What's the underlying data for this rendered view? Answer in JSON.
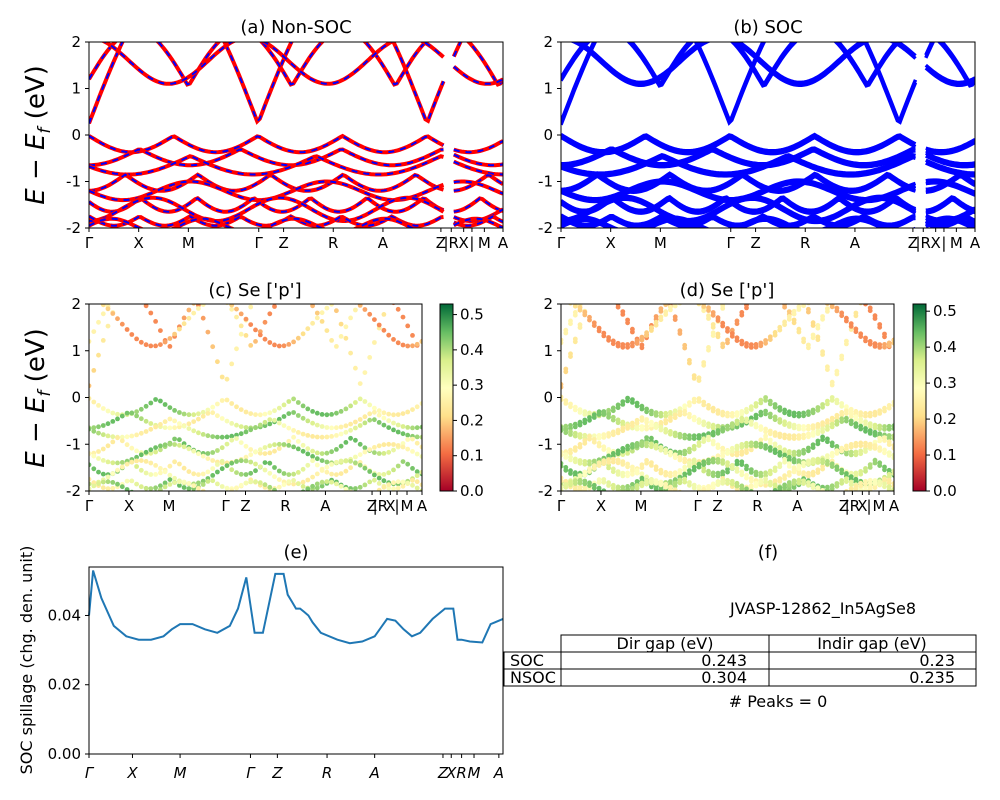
{
  "panels": {
    "a": {
      "title": "(a) Non-SOC"
    },
    "b": {
      "title": "(b) SOC"
    },
    "c": {
      "title": "(c)  Se ['p']"
    },
    "d": {
      "title": "(d) Se ['p']"
    },
    "e": {
      "title": "(e)"
    },
    "f": {
      "title": "(f)"
    }
  },
  "band_ylabel": "E − E_f (eV)",
  "band_ylabel_main": "E − E",
  "band_ylabel_sub": "f",
  "band_ylabel_unit": " (eV)",
  "kpath_labels": [
    "Γ",
    "X",
    "M",
    "Γ",
    "Z",
    "R",
    "A",
    "Z",
    "|R",
    "X",
    "|",
    "M",
    "A"
  ],
  "kpath_labels_e": [
    "Γ",
    "X",
    "M",
    "Γ",
    "Z",
    "R",
    "A",
    "Z",
    "X",
    "R",
    "M",
    "A"
  ],
  "band_yticks": [
    "-2",
    "-1",
    "0",
    "1",
    "2"
  ],
  "colorbar_c_ticks": [
    "0.0",
    "0.1",
    "0.2",
    "0.3",
    "0.4",
    "0.5"
  ],
  "colorbar_d_ticks": [
    "0.0",
    "0.1",
    "0.2",
    "0.3",
    "0.4",
    "0.5"
  ],
  "spillage_ylabel": "SOC spillage (chg. den. unit)",
  "spillage_yticks": [
    "0.00",
    "0.02",
    "0.04"
  ],
  "info": {
    "material_id": "JVASP-12862_In5AgSe8",
    "table_header": [
      "",
      "Dir gap (eV)",
      "Indir gap (eV)"
    ],
    "table_rows": [
      [
        "SOC",
        "0.243",
        "0.23"
      ],
      [
        "NSOC",
        "0.304",
        "0.235"
      ]
    ],
    "peaks": "# Peaks = 0"
  },
  "colors": {
    "nonsoc_band": "#ff0000",
    "nonsoc_dash": "#0000ff",
    "soc_band": "#0000ff",
    "spillage_line": "#1f77b4"
  },
  "chart_data": [
    {
      "type": "line",
      "title": "(a) Non-SOC",
      "ylabel": "E − E_f (eV)",
      "ylim": [
        -2,
        2
      ],
      "x_labels": [
        "Γ",
        "X",
        "M",
        "Γ",
        "Z",
        "R",
        "A",
        "Z",
        "|R",
        "X",
        "|",
        "M",
        "A"
      ],
      "series_note": "electronic bands (red solid with blue dashes)"
    },
    {
      "type": "line",
      "title": "(b) SOC",
      "ylim": [
        -2,
        2
      ],
      "x_labels": [
        "Γ",
        "X",
        "M",
        "Γ",
        "Z",
        "R",
        "A",
        "Z",
        "|R",
        "X",
        "|",
        "M",
        "A"
      ]
    },
    {
      "type": "scatter",
      "title": "(c)  Se ['p']",
      "ylim": [
        -2,
        2
      ],
      "colorbar_range": [
        0.0,
        0.53
      ]
    },
    {
      "type": "scatter",
      "title": "(d) Se ['p']",
      "ylim": [
        -2,
        2
      ],
      "colorbar_range": [
        0.0,
        0.52
      ]
    },
    {
      "type": "line",
      "title": "(e)",
      "ylabel": "SOC spillage (chg. den. unit)",
      "ylim": [
        0,
        0.054
      ],
      "x": [
        0,
        0.01,
        0.03,
        0.06,
        0.09,
        0.12,
        0.15,
        0.18,
        0.2,
        0.22,
        0.25,
        0.28,
        0.31,
        0.34,
        0.36,
        0.38,
        0.4,
        0.42,
        0.45,
        0.47,
        0.48,
        0.49,
        0.5,
        0.51,
        0.52,
        0.53,
        0.54,
        0.56,
        0.6,
        0.63,
        0.66,
        0.69,
        0.72,
        0.74,
        0.76,
        0.78,
        0.8,
        0.83,
        0.86,
        0.88,
        0.89,
        0.9,
        0.92,
        0.95,
        0.97,
        0.98,
        1.0
      ],
      "y": [
        0.04,
        0.053,
        0.045,
        0.037,
        0.034,
        0.033,
        0.033,
        0.034,
        0.036,
        0.0375,
        0.0375,
        0.036,
        0.035,
        0.037,
        0.042,
        0.051,
        0.035,
        0.035,
        0.052,
        0.052,
        0.046,
        0.044,
        0.042,
        0.042,
        0.041,
        0.04,
        0.038,
        0.035,
        0.033,
        0.032,
        0.0325,
        0.034,
        0.039,
        0.0385,
        0.036,
        0.034,
        0.035,
        0.039,
        0.042,
        0.042,
        0.033,
        0.033,
        0.0325,
        0.0322,
        0.0375,
        0.038,
        0.039
      ]
    },
    {
      "type": "table",
      "title": "(f)",
      "caption": "JVASP-12862_In5AgSe8",
      "columns": [
        "Dir gap (eV)",
        "Indir gap (eV)"
      ],
      "rows": [
        {
          "label": "SOC",
          "values": [
            0.243,
            0.23
          ]
        },
        {
          "label": "NSOC",
          "values": [
            0.304,
            0.235
          ]
        }
      ],
      "footer": "# Peaks = 0"
    }
  ]
}
